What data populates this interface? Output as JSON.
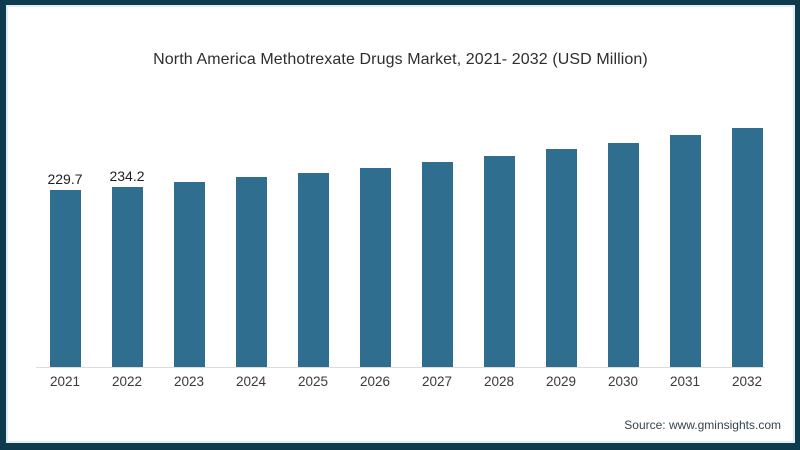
{
  "frame": {
    "border_color": "#0e3a4e",
    "inner_accent_color": "#ddeef4",
    "background": "#ffffff"
  },
  "chart_data": {
    "type": "bar",
    "title": "North America Methotrexate Drugs Market, 2021- 2032 (USD Million)",
    "categories": [
      "2021",
      "2022",
      "2023",
      "2024",
      "2025",
      "2026",
      "2027",
      "2028",
      "2029",
      "2030",
      "2031",
      "2032"
    ],
    "values": [
      229.7,
      234.2,
      240.1,
      246.6,
      251.8,
      258.2,
      266.0,
      273.8,
      282.9,
      290.7,
      301.1,
      310.2
    ],
    "bar_labels": [
      "229.7",
      "234.2",
      "",
      "",
      "",
      "",
      "",
      "",
      "",
      "",
      "",
      ""
    ],
    "bar_color": "#2f6e8e",
    "xlabel": "",
    "ylabel": "",
    "ylim": [
      0,
      320
    ],
    "grid": false,
    "legend": false,
    "axis_line_color": "#dcdcdc",
    "value_label_color": "#1f1f1f",
    "tick_label_color": "#3a3a3a"
  },
  "footer": {
    "source_label": "Source: www.gminsights.com"
  }
}
